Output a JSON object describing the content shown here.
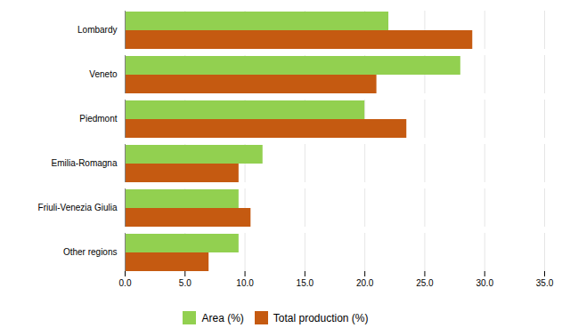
{
  "chart_data": {
    "type": "bar",
    "orientation": "horizontal",
    "categories": [
      "Lombardy",
      "Veneto",
      "Piedmont",
      "Emilia-Romagna",
      "Friuli-Venezia Giulia",
      "Other regions"
    ],
    "series": [
      {
        "name": "Area (%)",
        "color": "#92d050",
        "values": [
          22.0,
          28.0,
          20.0,
          11.5,
          9.5,
          9.5
        ]
      },
      {
        "name": "Total production (%)",
        "color": "#c55a11",
        "values": [
          29.0,
          21.0,
          23.5,
          9.5,
          10.5,
          7.0
        ]
      }
    ],
    "xlim": [
      0,
      35.0
    ],
    "xticks": [
      {
        "value": 0.0,
        "label": "0.0"
      },
      {
        "value": 5.0,
        "label": "5.0"
      },
      {
        "value": 10.0,
        "label": "10.0"
      },
      {
        "value": 15.0,
        "label": "15.0"
      },
      {
        "value": 20.0,
        "label": "20.0"
      },
      {
        "value": 25.0,
        "label": "25.0"
      },
      {
        "value": 30.0,
        "label": "30.0"
      },
      {
        "value": 35.0,
        "label": "35.0"
      }
    ],
    "grid": true,
    "legend": "bottom"
  }
}
